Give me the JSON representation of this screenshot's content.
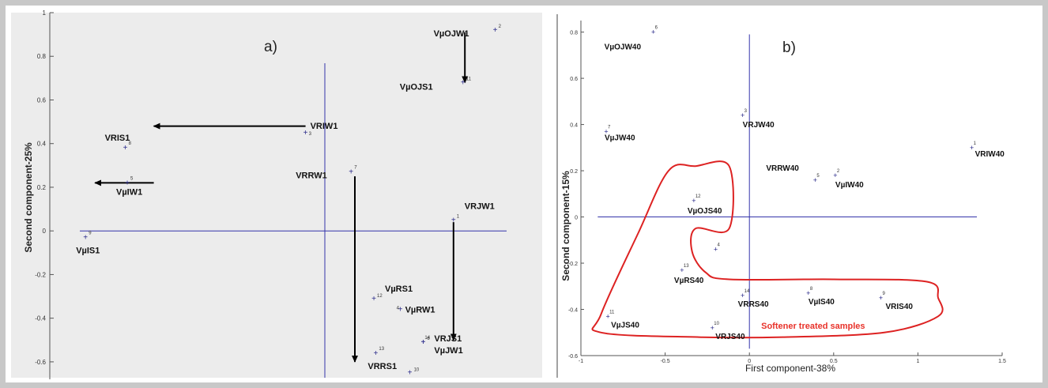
{
  "chart_data": [
    {
      "type": "scatter",
      "panel_label": "a)",
      "ylabel": "Second component-25%",
      "xlabel": "",
      "background": "#ececec",
      "ylim": [
        -0.68,
        1.0
      ],
      "xlim": [
        -1.05,
        1.2
      ],
      "y_ticks": [
        "1",
        "0.8",
        "0.6",
        "0.4",
        "0.2",
        "0",
        "-0.2",
        "-0.4",
        "-0.6"
      ],
      "y_tick_values": [
        1,
        0.8,
        0.6,
        0.4,
        0.2,
        0,
        -0.2,
        -0.4,
        -0.6
      ],
      "points": [
        {
          "id": "1",
          "label": "VRJW1",
          "x": 0.92,
          "y": 0.05
        },
        {
          "id": "2",
          "label": "VµOJW1",
          "x": 1.14,
          "y": 0.92
        },
        {
          "id": "3",
          "label": "VRIW1",
          "x": 0.14,
          "y": 0.45
        },
        {
          "id": "5",
          "label": "VµIW1",
          "x": -0.8,
          "y": 0.22
        },
        {
          "id": "7",
          "label": "VRRW1",
          "x": 0.38,
          "y": 0.27
        },
        {
          "id": "8",
          "label": "VRIS1",
          "x": -0.81,
          "y": 0.38
        },
        {
          "id": "9",
          "label": "VµIS1",
          "x": -1.02,
          "y": -0.03
        },
        {
          "id": "10",
          "label": "",
          "x": 0.69,
          "y": -0.65
        },
        {
          "id": "11",
          "label": "VµOJS1",
          "x": 0.97,
          "y": 0.68
        },
        {
          "id": "12",
          "label": "VµRS1",
          "x": 0.5,
          "y": -0.31
        },
        {
          "id": "13",
          "label": "VRRS1",
          "x": 0.51,
          "y": -0.56
        },
        {
          "id": "4",
          "label": "VµRW1",
          "x": 0.64,
          "y": -0.36
        },
        {
          "id": "14",
          "label": "VRJS1",
          "x": 0.76,
          "y": -0.51
        },
        {
          "id": "6",
          "label": "VµJW1",
          "x": 0.76,
          "y": -0.51
        }
      ],
      "arrows": [
        {
          "from": [
            0.14,
            0.48
          ],
          "to": [
            -0.66,
            0.48
          ]
        },
        {
          "from": [
            -0.66,
            0.22
          ],
          "to": [
            -0.97,
            0.22
          ]
        },
        {
          "from": [
            0.4,
            0.25
          ],
          "to": [
            0.4,
            -0.6
          ]
        },
        {
          "from": [
            0.92,
            0.04
          ],
          "to": [
            0.92,
            -0.5
          ]
        },
        {
          "from": [
            0.98,
            0.91
          ],
          "to": [
            0.98,
            0.68
          ]
        }
      ],
      "colors": {
        "axis": "#3333aa",
        "point": "#2a2a8a",
        "arrow": "#000000"
      }
    },
    {
      "type": "scatter",
      "panel_label": "b)",
      "xlabel": "First component-38%",
      "ylabel": "Second component-15%",
      "xlim": [
        -1,
        1.5
      ],
      "ylim": [
        -0.6,
        0.85
      ],
      "x_ticks": [
        "-1",
        "-0.5",
        "0",
        "0.5",
        "1",
        "1.5"
      ],
      "x_tick_values": [
        -1,
        -0.5,
        0,
        0.5,
        1,
        1.5
      ],
      "y_ticks": [
        "0.8",
        "0.6",
        "0.4",
        "0.2",
        "0",
        "-0.2",
        "-0.4",
        "-0.6"
      ],
      "y_tick_values": [
        0.8,
        0.6,
        0.4,
        0.2,
        0,
        -0.2,
        -0.4,
        -0.6
      ],
      "points": [
        {
          "id": "1",
          "label": "VRIW40",
          "x": 1.32,
          "y": 0.3
        },
        {
          "id": "2",
          "label": "VµIW40",
          "x": 0.51,
          "y": 0.18
        },
        {
          "id": "3",
          "label": "VRJW40",
          "x": -0.04,
          "y": 0.44
        },
        {
          "id": "4",
          "label": "",
          "x": -0.2,
          "y": -0.14
        },
        {
          "id": "5",
          "label": "VRRW40",
          "x": 0.39,
          "y": 0.16
        },
        {
          "id": "6",
          "label": "VµOJW40",
          "x": -0.57,
          "y": 0.8
        },
        {
          "id": "7",
          "label": "VµJW40",
          "x": -0.85,
          "y": 0.37
        },
        {
          "id": "8",
          "label": "VµIS40",
          "x": 0.35,
          "y": -0.33
        },
        {
          "id": "9",
          "label": "VRIS40",
          "x": 0.78,
          "y": -0.35
        },
        {
          "id": "10",
          "label": "VRJS40",
          "x": -0.22,
          "y": -0.48
        },
        {
          "id": "11",
          "label": "VµJS40",
          "x": -0.84,
          "y": -0.43
        },
        {
          "id": "12",
          "label": "VµOJS40",
          "x": -0.33,
          "y": 0.07
        },
        {
          "id": "13",
          "label": "VµRS40",
          "x": -0.4,
          "y": -0.23
        },
        {
          "id": "14",
          "label": "VRRS40",
          "x": -0.04,
          "y": -0.34
        }
      ],
      "annotation": {
        "text": "Softener treated samples",
        "x": 0.07,
        "y": -0.47,
        "color": "#e8322a"
      },
      "region_outline": [
        [
          -0.48,
          0.2
        ],
        [
          -0.32,
          0.22
        ],
        [
          -0.12,
          0.22
        ],
        [
          -0.12,
          -0.05
        ],
        [
          -0.32,
          -0.05
        ],
        [
          -0.34,
          -0.15
        ],
        [
          -0.26,
          -0.24
        ],
        [
          -0.12,
          -0.27
        ],
        [
          0.5,
          -0.27
        ],
        [
          1.05,
          -0.28
        ],
        [
          1.12,
          -0.35
        ],
        [
          1.12,
          -0.43
        ],
        [
          0.8,
          -0.5
        ],
        [
          0.2,
          -0.52
        ],
        [
          -0.3,
          -0.52
        ],
        [
          -0.88,
          -0.5
        ],
        [
          -0.88,
          -0.42
        ],
        [
          -0.66,
          -0.07
        ]
      ],
      "colors": {
        "axis": "#3333aa",
        "point": "#2a2a8a",
        "outline": "#dd2222"
      }
    }
  ]
}
